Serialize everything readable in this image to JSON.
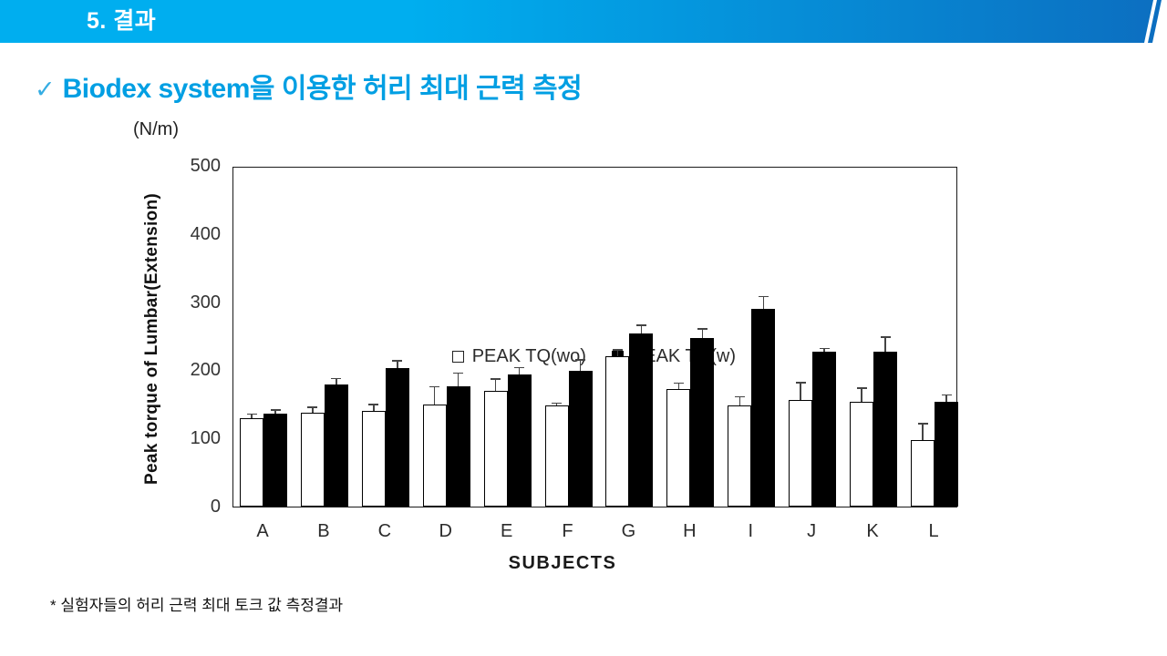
{
  "header": {
    "title": "5. 결과"
  },
  "slide_title": {
    "check": "✓",
    "text": "Biodex system을 이용한 허리 최대 근력 측정"
  },
  "footnote": "* 실험자들의 허리 근력 최대 토크 값 측정결과",
  "colors": {
    "header_left": "#00AEEF",
    "header_right": "#0C6EC0",
    "title_blue": "#009FE3"
  },
  "chart_data": {
    "type": "bar",
    "title": "",
    "unit_label": "(N/m)",
    "ylabel": "Peak torque of Lumbar(Extension)",
    "xlabel": "SUBJECTS",
    "ylim": [
      0,
      500
    ],
    "yticks": [
      0,
      100,
      200,
      300,
      400,
      500
    ],
    "grid": false,
    "legend_position": "top-right-inside",
    "categories": [
      "A",
      "B",
      "C",
      "D",
      "E",
      "F",
      "G",
      "H",
      "I",
      "J",
      "K",
      "L"
    ],
    "series": [
      {
        "name": "PEAK TQ(wo)",
        "fill": "#ffffff",
        "values": [
          130,
          138,
          140,
          150,
          170,
          148,
          220,
          173,
          149,
          156,
          154,
          98
        ],
        "errors": [
          5,
          7,
          9,
          25,
          16,
          3,
          9,
          7,
          11,
          25,
          19,
          23
        ]
      },
      {
        "name": "PEAK TQ(w)",
        "fill": "#000000",
        "values": [
          137,
          179,
          203,
          176,
          194,
          199,
          254,
          247,
          290,
          227,
          227,
          154
        ],
        "errors": [
          4,
          8,
          10,
          19,
          9,
          15,
          11,
          13,
          17,
          4,
          21,
          9
        ]
      }
    ]
  }
}
